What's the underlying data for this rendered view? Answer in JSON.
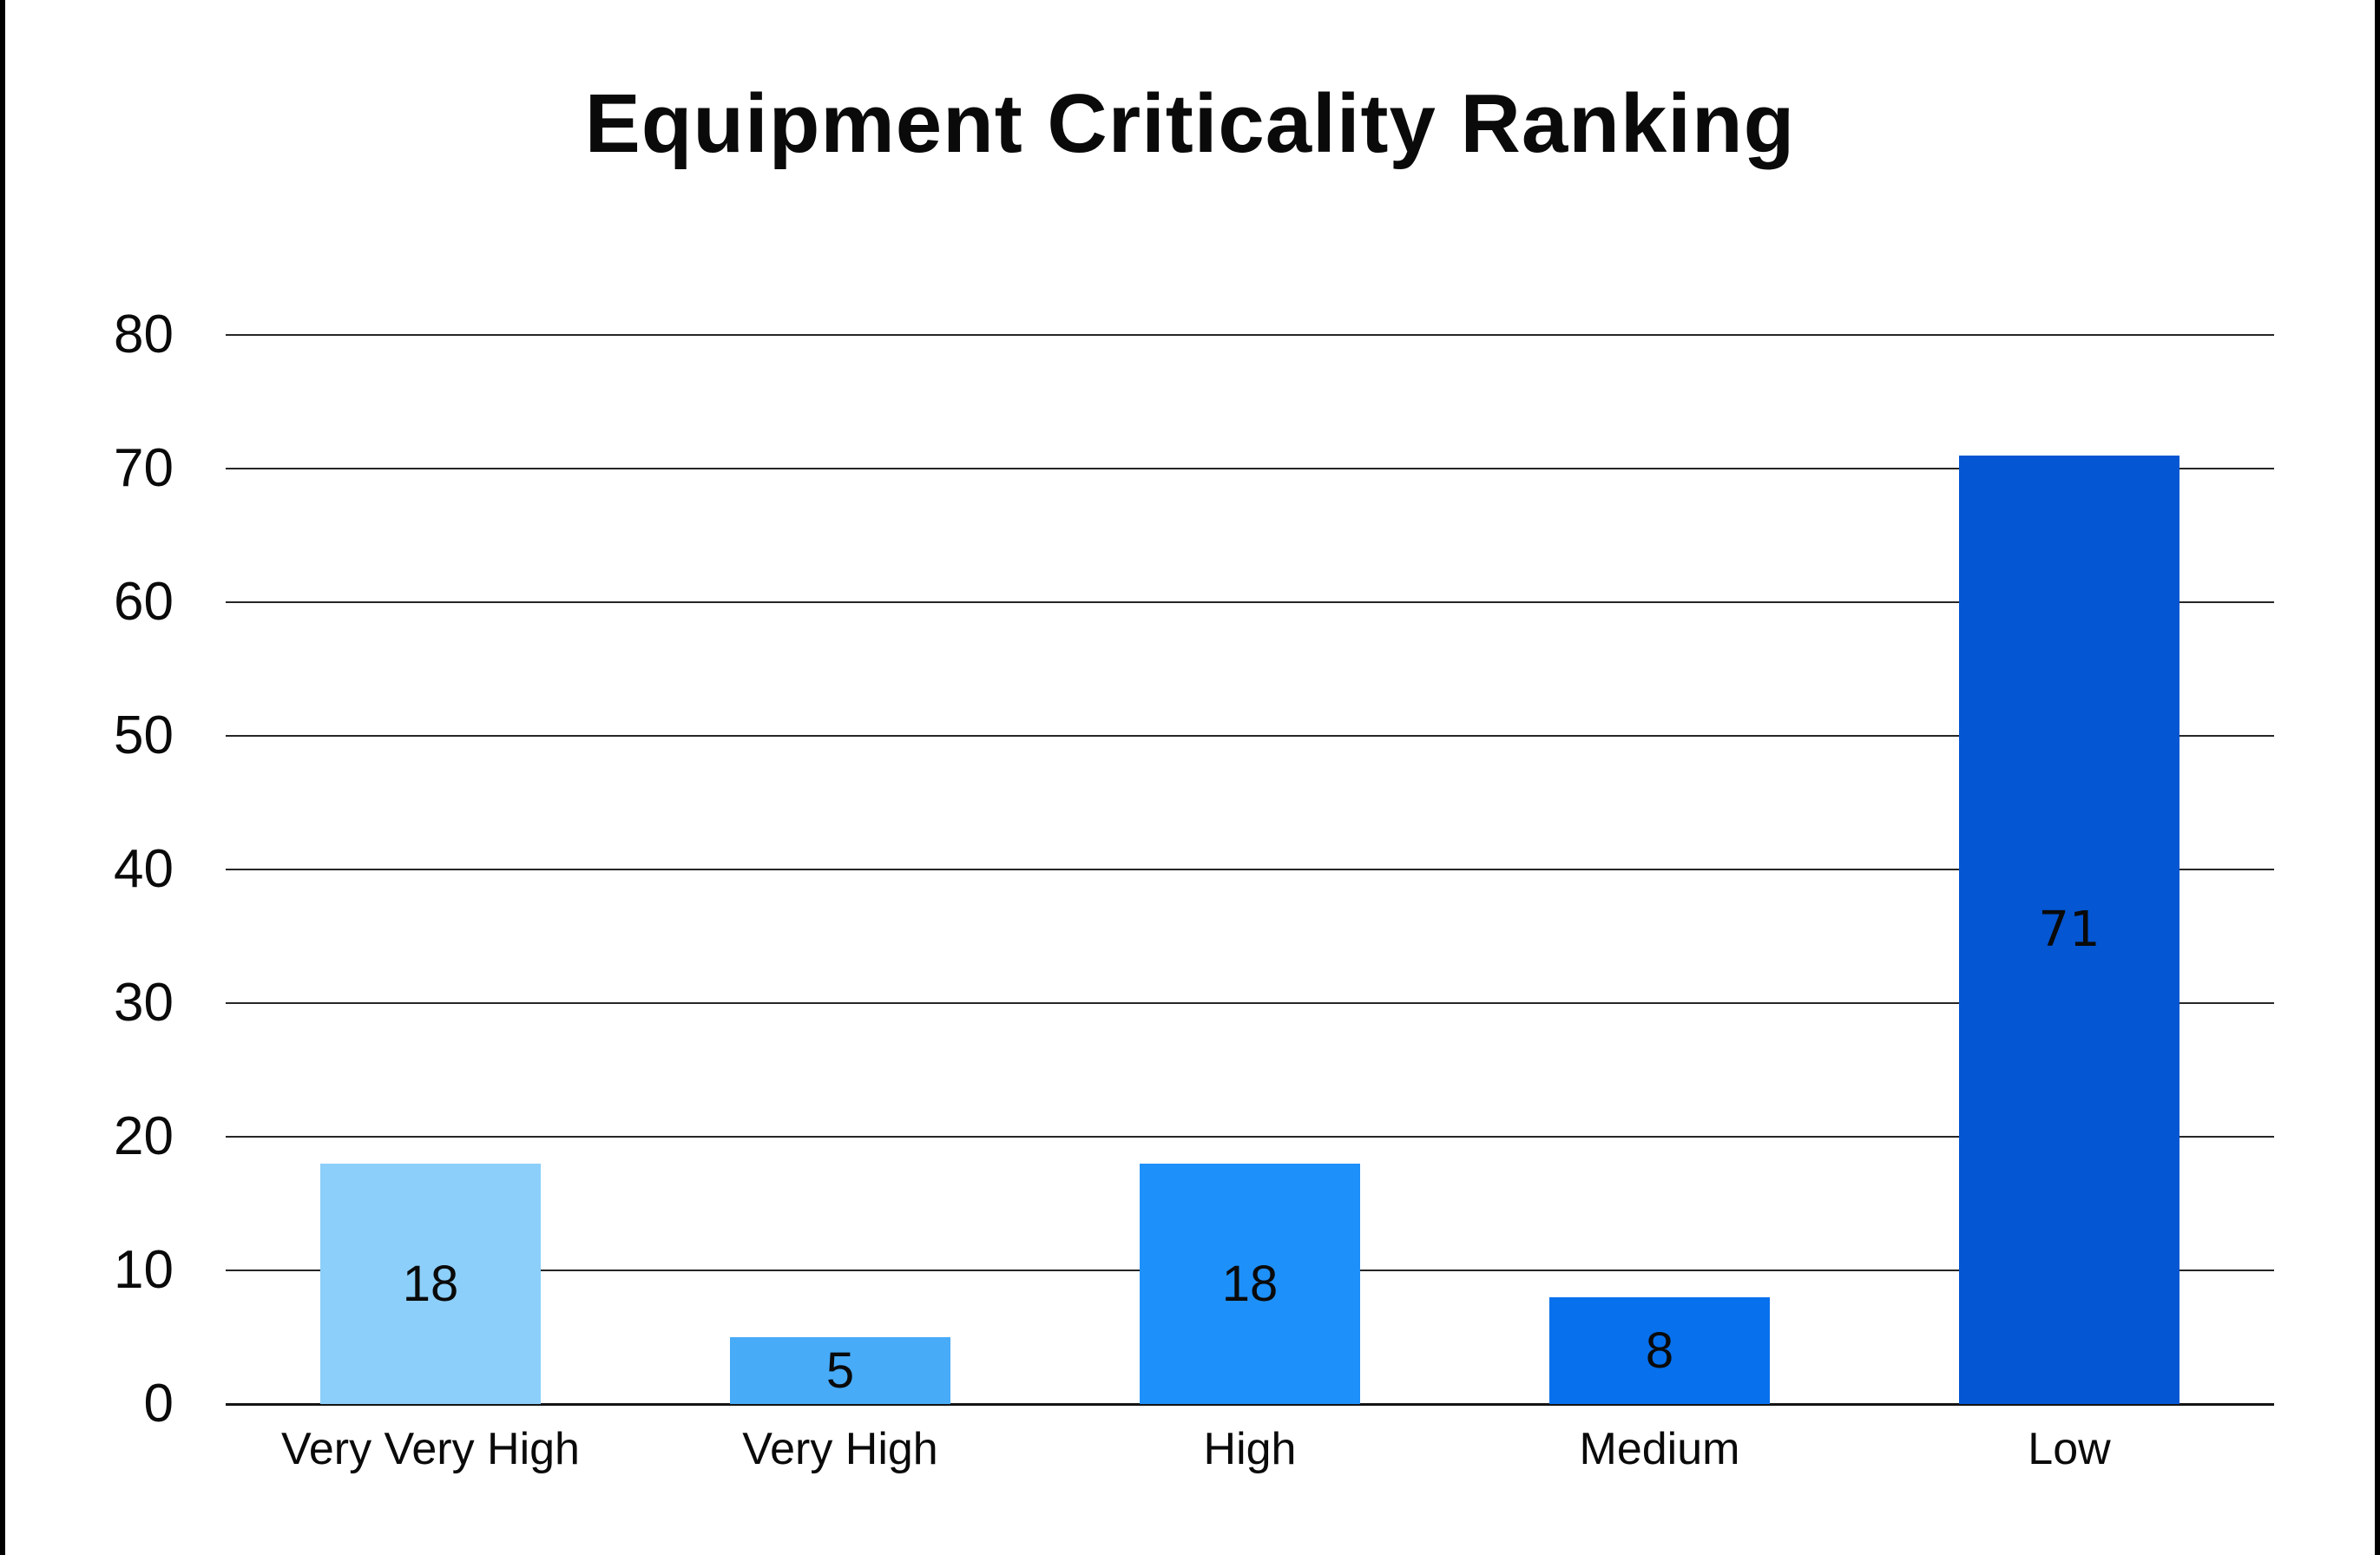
{
  "page": {
    "background": "#ffffff",
    "edge_border_color": "#000000"
  },
  "chart_data": {
    "type": "bar",
    "title": "Equipment Criticality Ranking",
    "categories": [
      "Very Very High",
      "Very High",
      "High",
      "Medium",
      "Low"
    ],
    "values": [
      18,
      5,
      18,
      8,
      71
    ],
    "value_labels": [
      "18",
      "5",
      "18",
      "8",
      "71"
    ],
    "value_label_variants": [
      "default",
      "default",
      "default",
      "default",
      "alt"
    ],
    "bar_colors": [
      "#8CCFFA",
      "#47ABF8",
      "#1E90FA",
      "#0770EC",
      "#0456D2"
    ],
    "xlabel": "",
    "ylabel": "",
    "ylim": [
      0,
      80
    ],
    "y_tick_step": 10,
    "y_tick_labels": [
      "80",
      "70",
      "60",
      "50",
      "40",
      "30",
      "20",
      "10",
      "0"
    ],
    "grid": true,
    "legend": false,
    "text_color": "#0a0a0a",
    "gridline_color": "#262626",
    "axis_line_color": "#141414"
  }
}
